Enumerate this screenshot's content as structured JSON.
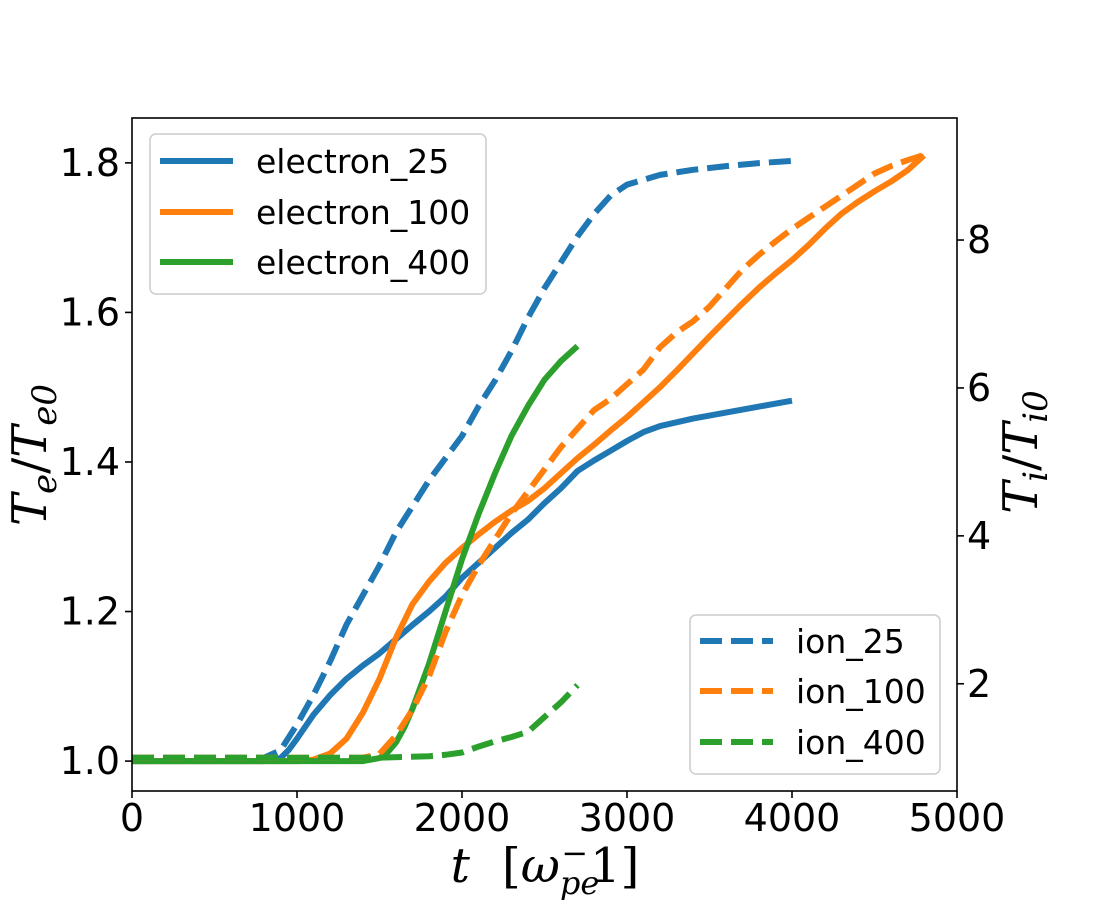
{
  "chart_data": {
    "type": "line",
    "xlim": [
      0,
      5000
    ],
    "ylim_left": [
      0.96,
      1.86
    ],
    "ylim_right": [
      0.55,
      9.65
    ],
    "x_ticks": [
      "0",
      "1000",
      "2000",
      "3000",
      "4000",
      "5000"
    ],
    "x_tick_values": [
      0,
      1000,
      2000,
      3000,
      4000,
      5000
    ],
    "y_left_ticks": [
      "1.0",
      "1.2",
      "1.4",
      "1.6",
      "1.8"
    ],
    "y_left_tick_values": [
      1.0,
      1.2,
      1.4,
      1.6,
      1.8
    ],
    "y_right_ticks": [
      "2",
      "4",
      "6",
      "8"
    ],
    "y_right_tick_values": [
      2,
      4,
      6,
      8
    ],
    "xlabel": {
      "var": "t",
      "bracket_open": "[",
      "omega": "ω",
      "sub": "pe",
      "sup": "−",
      "one": "1",
      "bracket_close": "]"
    },
    "ylabel_left": {
      "num": "T",
      "num_sub": "e",
      "slash": "/",
      "den": "T",
      "den_sub": "e0"
    },
    "ylabel_right": {
      "num": "T",
      "num_sub": "i",
      "slash": "/",
      "den": "T",
      "den_sub": "i0"
    },
    "grid": false,
    "legend_left": {
      "placement": "top-left",
      "entries": [
        "electron_25",
        "electron_100",
        "electron_400"
      ]
    },
    "legend_right": {
      "placement": "bottom-right",
      "entries": [
        "ion_25",
        "ion_100",
        "ion_400"
      ]
    },
    "series": [
      {
        "name": "electron_25",
        "axis": "left",
        "style": "solid",
        "color": "#1f77b4",
        "x": [
          0,
          800,
          900,
          950,
          1000,
          1100,
          1200,
          1300,
          1400,
          1500,
          1600,
          1700,
          1800,
          1900,
          2000,
          2100,
          2200,
          2300,
          2400,
          2500,
          2600,
          2700,
          2800,
          2900,
          3000,
          3100,
          3200,
          3400,
          3600,
          3800,
          4000
        ],
        "y": [
          1.0,
          1.0,
          1.004,
          1.015,
          1.03,
          1.062,
          1.088,
          1.11,
          1.128,
          1.144,
          1.163,
          1.182,
          1.2,
          1.22,
          1.245,
          1.265,
          1.285,
          1.305,
          1.323,
          1.345,
          1.365,
          1.388,
          1.402,
          1.415,
          1.428,
          1.44,
          1.448,
          1.458,
          1.466,
          1.474,
          1.482
        ]
      },
      {
        "name": "electron_100",
        "axis": "left",
        "style": "solid",
        "color": "#ff7f0e",
        "x": [
          0,
          1000,
          1100,
          1200,
          1300,
          1400,
          1500,
          1600,
          1700,
          1800,
          1900,
          2000,
          2100,
          2200,
          2300,
          2400,
          2500,
          2600,
          2700,
          2800,
          2900,
          3000,
          3100,
          3200,
          3300,
          3400,
          3500,
          3600,
          3700,
          3800,
          3900,
          4000,
          4100,
          4200,
          4300,
          4400,
          4500,
          4600,
          4700,
          4800
        ],
        "y": [
          1.0,
          1.0,
          1.002,
          1.01,
          1.03,
          1.065,
          1.11,
          1.165,
          1.21,
          1.24,
          1.265,
          1.285,
          1.303,
          1.32,
          1.335,
          1.348,
          1.365,
          1.385,
          1.405,
          1.423,
          1.442,
          1.46,
          1.48,
          1.5,
          1.522,
          1.545,
          1.568,
          1.59,
          1.612,
          1.633,
          1.652,
          1.67,
          1.69,
          1.712,
          1.732,
          1.748,
          1.762,
          1.775,
          1.79,
          1.81
        ]
      },
      {
        "name": "electron_400",
        "axis": "left",
        "style": "solid",
        "color": "#2ca02c",
        "x": [
          0,
          1400,
          1500,
          1550,
          1600,
          1650,
          1700,
          1800,
          1900,
          2000,
          2100,
          2200,
          2300,
          2400,
          2500,
          2600,
          2700
        ],
        "y": [
          1.0,
          1.0,
          1.004,
          1.012,
          1.025,
          1.045,
          1.07,
          1.13,
          1.2,
          1.27,
          1.33,
          1.385,
          1.435,
          1.475,
          1.51,
          1.535,
          1.555
        ]
      },
      {
        "name": "ion_25",
        "axis": "right",
        "style": "dashed",
        "color": "#1f77b4",
        "x": [
          0,
          800,
          900,
          1000,
          1100,
          1200,
          1300,
          1400,
          1500,
          1600,
          1700,
          1800,
          1900,
          2000,
          2100,
          2200,
          2300,
          2400,
          2500,
          2600,
          2700,
          2800,
          2900,
          3000,
          3200,
          3400,
          3600,
          3800,
          4000
        ],
        "y": [
          1.0,
          1.0,
          1.1,
          1.45,
          1.85,
          2.3,
          2.8,
          3.2,
          3.6,
          4.05,
          4.4,
          4.75,
          5.05,
          5.35,
          5.75,
          6.1,
          6.5,
          6.95,
          7.35,
          7.7,
          8.05,
          8.35,
          8.6,
          8.75,
          8.88,
          8.95,
          9.0,
          9.04,
          9.07
        ]
      },
      {
        "name": "ion_100",
        "axis": "right",
        "style": "dashed",
        "color": "#ff7f0e",
        "x": [
          0,
          1400,
          1500,
          1600,
          1700,
          1800,
          1900,
          2000,
          2100,
          2200,
          2300,
          2400,
          2500,
          2600,
          2700,
          2800,
          2900,
          3000,
          3100,
          3200,
          3300,
          3400,
          3500,
          3600,
          3700,
          3800,
          3900,
          4000,
          4100,
          4200,
          4300,
          4400,
          4500,
          4600,
          4700,
          4800
        ],
        "y": [
          1.0,
          1.0,
          1.05,
          1.3,
          1.65,
          2.1,
          2.7,
          3.2,
          3.6,
          3.95,
          4.3,
          4.6,
          4.9,
          5.2,
          5.45,
          5.7,
          5.85,
          6.05,
          6.25,
          6.55,
          6.75,
          6.9,
          7.1,
          7.35,
          7.6,
          7.8,
          7.98,
          8.15,
          8.3,
          8.45,
          8.6,
          8.75,
          8.9,
          9.0,
          9.08,
          9.15
        ]
      },
      {
        "name": "ion_400",
        "axis": "right",
        "style": "dashed",
        "color": "#2ca02c",
        "x": [
          0,
          1500,
          1800,
          1900,
          2000,
          2100,
          2200,
          2300,
          2400,
          2500,
          2600,
          2700
        ],
        "y": [
          1.0,
          1.0,
          1.02,
          1.04,
          1.07,
          1.15,
          1.22,
          1.28,
          1.35,
          1.55,
          1.75,
          1.98
        ]
      }
    ]
  }
}
